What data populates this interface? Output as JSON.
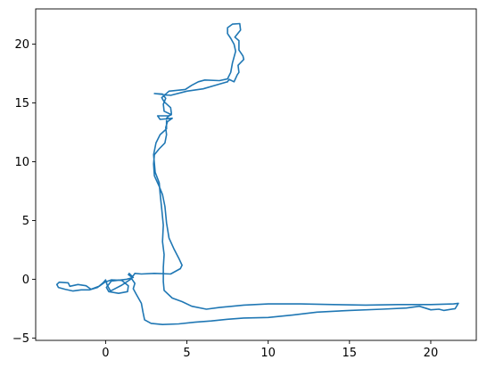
{
  "chart_data": {
    "type": "line",
    "title": "",
    "xlabel": "",
    "ylabel": "",
    "xlim": [
      -4.3,
      22.8
    ],
    "ylim": [
      -5.2,
      23.0
    ],
    "x_ticks": [
      0,
      5,
      10,
      15,
      20
    ],
    "y_ticks": [
      -5,
      0,
      5,
      10,
      15,
      20
    ],
    "x_tick_labels": [
      "0",
      "5",
      "10",
      "15",
      "20"
    ],
    "y_tick_labels": [
      "−5",
      "0",
      "5",
      "10",
      "15",
      "20"
    ],
    "grid": false,
    "legend": "none",
    "series": [
      {
        "color": "#1f77b4",
        "points": [
          [
            1.4,
            0.4
          ],
          [
            1.6,
            0.2
          ],
          [
            1.7,
            0.3
          ],
          [
            1.8,
            0.5
          ],
          [
            2.2,
            0.45
          ],
          [
            3.0,
            0.5
          ],
          [
            4.0,
            0.45
          ],
          [
            4.6,
            0.9
          ],
          [
            4.7,
            1.2
          ],
          [
            4.5,
            1.8
          ],
          [
            4.2,
            2.6
          ],
          [
            3.9,
            3.5
          ],
          [
            3.75,
            4.8
          ],
          [
            3.65,
            6.2
          ],
          [
            3.5,
            7.2
          ],
          [
            3.3,
            7.9
          ],
          [
            3.0,
            8.8
          ],
          [
            2.95,
            9.8
          ],
          [
            3.0,
            10.6
          ],
          [
            3.3,
            11.1
          ],
          [
            3.65,
            11.6
          ],
          [
            3.75,
            12.3
          ],
          [
            3.7,
            12.9
          ],
          [
            3.8,
            13.4
          ],
          [
            4.1,
            13.7
          ],
          [
            3.35,
            13.6
          ],
          [
            3.2,
            13.9
          ],
          [
            3.9,
            13.9
          ],
          [
            4.05,
            14.0
          ],
          [
            3.6,
            14.3
          ],
          [
            3.55,
            14.9
          ],
          [
            3.7,
            15.4
          ],
          [
            3.5,
            15.75
          ],
          [
            3.0,
            15.8
          ],
          [
            4.0,
            15.65
          ],
          [
            5.0,
            16.0
          ],
          [
            6.0,
            16.2
          ],
          [
            7.0,
            16.6
          ],
          [
            7.5,
            16.8
          ],
          [
            7.6,
            17.0
          ],
          [
            7.9,
            16.8
          ],
          [
            8.1,
            17.4
          ],
          [
            8.2,
            17.6
          ],
          [
            8.15,
            18.2
          ],
          [
            8.5,
            18.7
          ],
          [
            8.45,
            19.0
          ],
          [
            8.2,
            19.5
          ],
          [
            8.2,
            20.3
          ],
          [
            7.95,
            20.6
          ],
          [
            8.3,
            21.2
          ],
          [
            8.25,
            21.75
          ],
          [
            7.8,
            21.7
          ],
          [
            7.5,
            21.4
          ],
          [
            7.5,
            20.9
          ],
          [
            7.7,
            20.5
          ],
          [
            7.9,
            20.0
          ],
          [
            8.0,
            19.4
          ],
          [
            7.8,
            18.4
          ],
          [
            7.7,
            17.6
          ],
          [
            7.5,
            17.05
          ],
          [
            7.0,
            16.9
          ],
          [
            6.1,
            16.95
          ],
          [
            5.7,
            16.8
          ],
          [
            5.3,
            16.5
          ],
          [
            4.9,
            16.15
          ],
          [
            3.9,
            16.0
          ],
          [
            3.45,
            15.45
          ],
          [
            3.6,
            15.1
          ],
          [
            4.0,
            14.6
          ],
          [
            4.05,
            14.1
          ],
          [
            3.75,
            13.7
          ],
          [
            3.75,
            12.8
          ],
          [
            3.35,
            12.3
          ],
          [
            3.1,
            11.6
          ],
          [
            2.95,
            10.6
          ],
          [
            3.05,
            9.1
          ],
          [
            3.3,
            8.2
          ],
          [
            3.35,
            7.3
          ],
          [
            3.45,
            6.0
          ],
          [
            3.55,
            4.6
          ],
          [
            3.5,
            3.2
          ],
          [
            3.6,
            2.1
          ],
          [
            3.55,
            1.0
          ],
          [
            3.55,
            -0.2
          ],
          [
            3.6,
            -0.95
          ],
          [
            4.1,
            -1.6
          ],
          [
            4.7,
            -1.9
          ],
          [
            5.3,
            -2.3
          ],
          [
            6.2,
            -2.55
          ],
          [
            7.0,
            -2.4
          ],
          [
            8.5,
            -2.2
          ],
          [
            10.0,
            -2.1
          ],
          [
            12.0,
            -2.1
          ],
          [
            14.0,
            -2.15
          ],
          [
            16.0,
            -2.2
          ],
          [
            18.0,
            -2.15
          ],
          [
            20.0,
            -2.15
          ],
          [
            21.4,
            -2.1
          ],
          [
            21.7,
            -2.05
          ],
          [
            21.5,
            -2.5
          ],
          [
            20.8,
            -2.65
          ],
          [
            20.5,
            -2.55
          ],
          [
            20.0,
            -2.6
          ],
          [
            19.3,
            -2.3
          ],
          [
            18.5,
            -2.45
          ],
          [
            17.0,
            -2.55
          ],
          [
            15.0,
            -2.65
          ],
          [
            13.0,
            -2.8
          ],
          [
            11.5,
            -3.05
          ],
          [
            10.0,
            -3.25
          ],
          [
            8.5,
            -3.3
          ],
          [
            7.5,
            -3.4
          ],
          [
            6.5,
            -3.55
          ],
          [
            5.5,
            -3.65
          ],
          [
            4.5,
            -3.8
          ],
          [
            3.5,
            -3.85
          ],
          [
            2.8,
            -3.75
          ],
          [
            2.4,
            -3.45
          ],
          [
            2.3,
            -2.8
          ],
          [
            2.2,
            -2.05
          ],
          [
            1.9,
            -1.3
          ],
          [
            1.7,
            -0.8
          ],
          [
            1.8,
            -0.35
          ],
          [
            1.6,
            0.05
          ],
          [
            1.0,
            -0.5
          ],
          [
            0.3,
            -1.0
          ],
          [
            0.1,
            -0.5
          ],
          [
            0.0,
            -0.05
          ],
          [
            -0.15,
            -0.3
          ],
          [
            -0.5,
            -0.7
          ],
          [
            -1.0,
            -0.9
          ],
          [
            -1.5,
            -0.9
          ],
          [
            -2.0,
            -1.0
          ],
          [
            -2.5,
            -0.85
          ],
          [
            -2.9,
            -0.7
          ],
          [
            -3.0,
            -0.45
          ],
          [
            -2.85,
            -0.25
          ],
          [
            -2.3,
            -0.3
          ],
          [
            -2.2,
            -0.6
          ],
          [
            -1.7,
            -0.45
          ],
          [
            -1.2,
            -0.55
          ],
          [
            -0.9,
            -0.85
          ],
          [
            -0.4,
            -0.6
          ],
          [
            -0.05,
            -0.25
          ],
          [
            0.35,
            -0.05
          ],
          [
            1.0,
            -0.1
          ],
          [
            1.4,
            -0.55
          ],
          [
            1.35,
            -1.05
          ],
          [
            0.8,
            -1.2
          ],
          [
            0.2,
            -1.05
          ],
          [
            0.05,
            -0.7
          ],
          [
            0.35,
            -0.15
          ],
          [
            1.3,
            0.0
          ],
          [
            1.7,
            0.15
          ],
          [
            1.45,
            0.5
          ]
        ]
      }
    ]
  }
}
